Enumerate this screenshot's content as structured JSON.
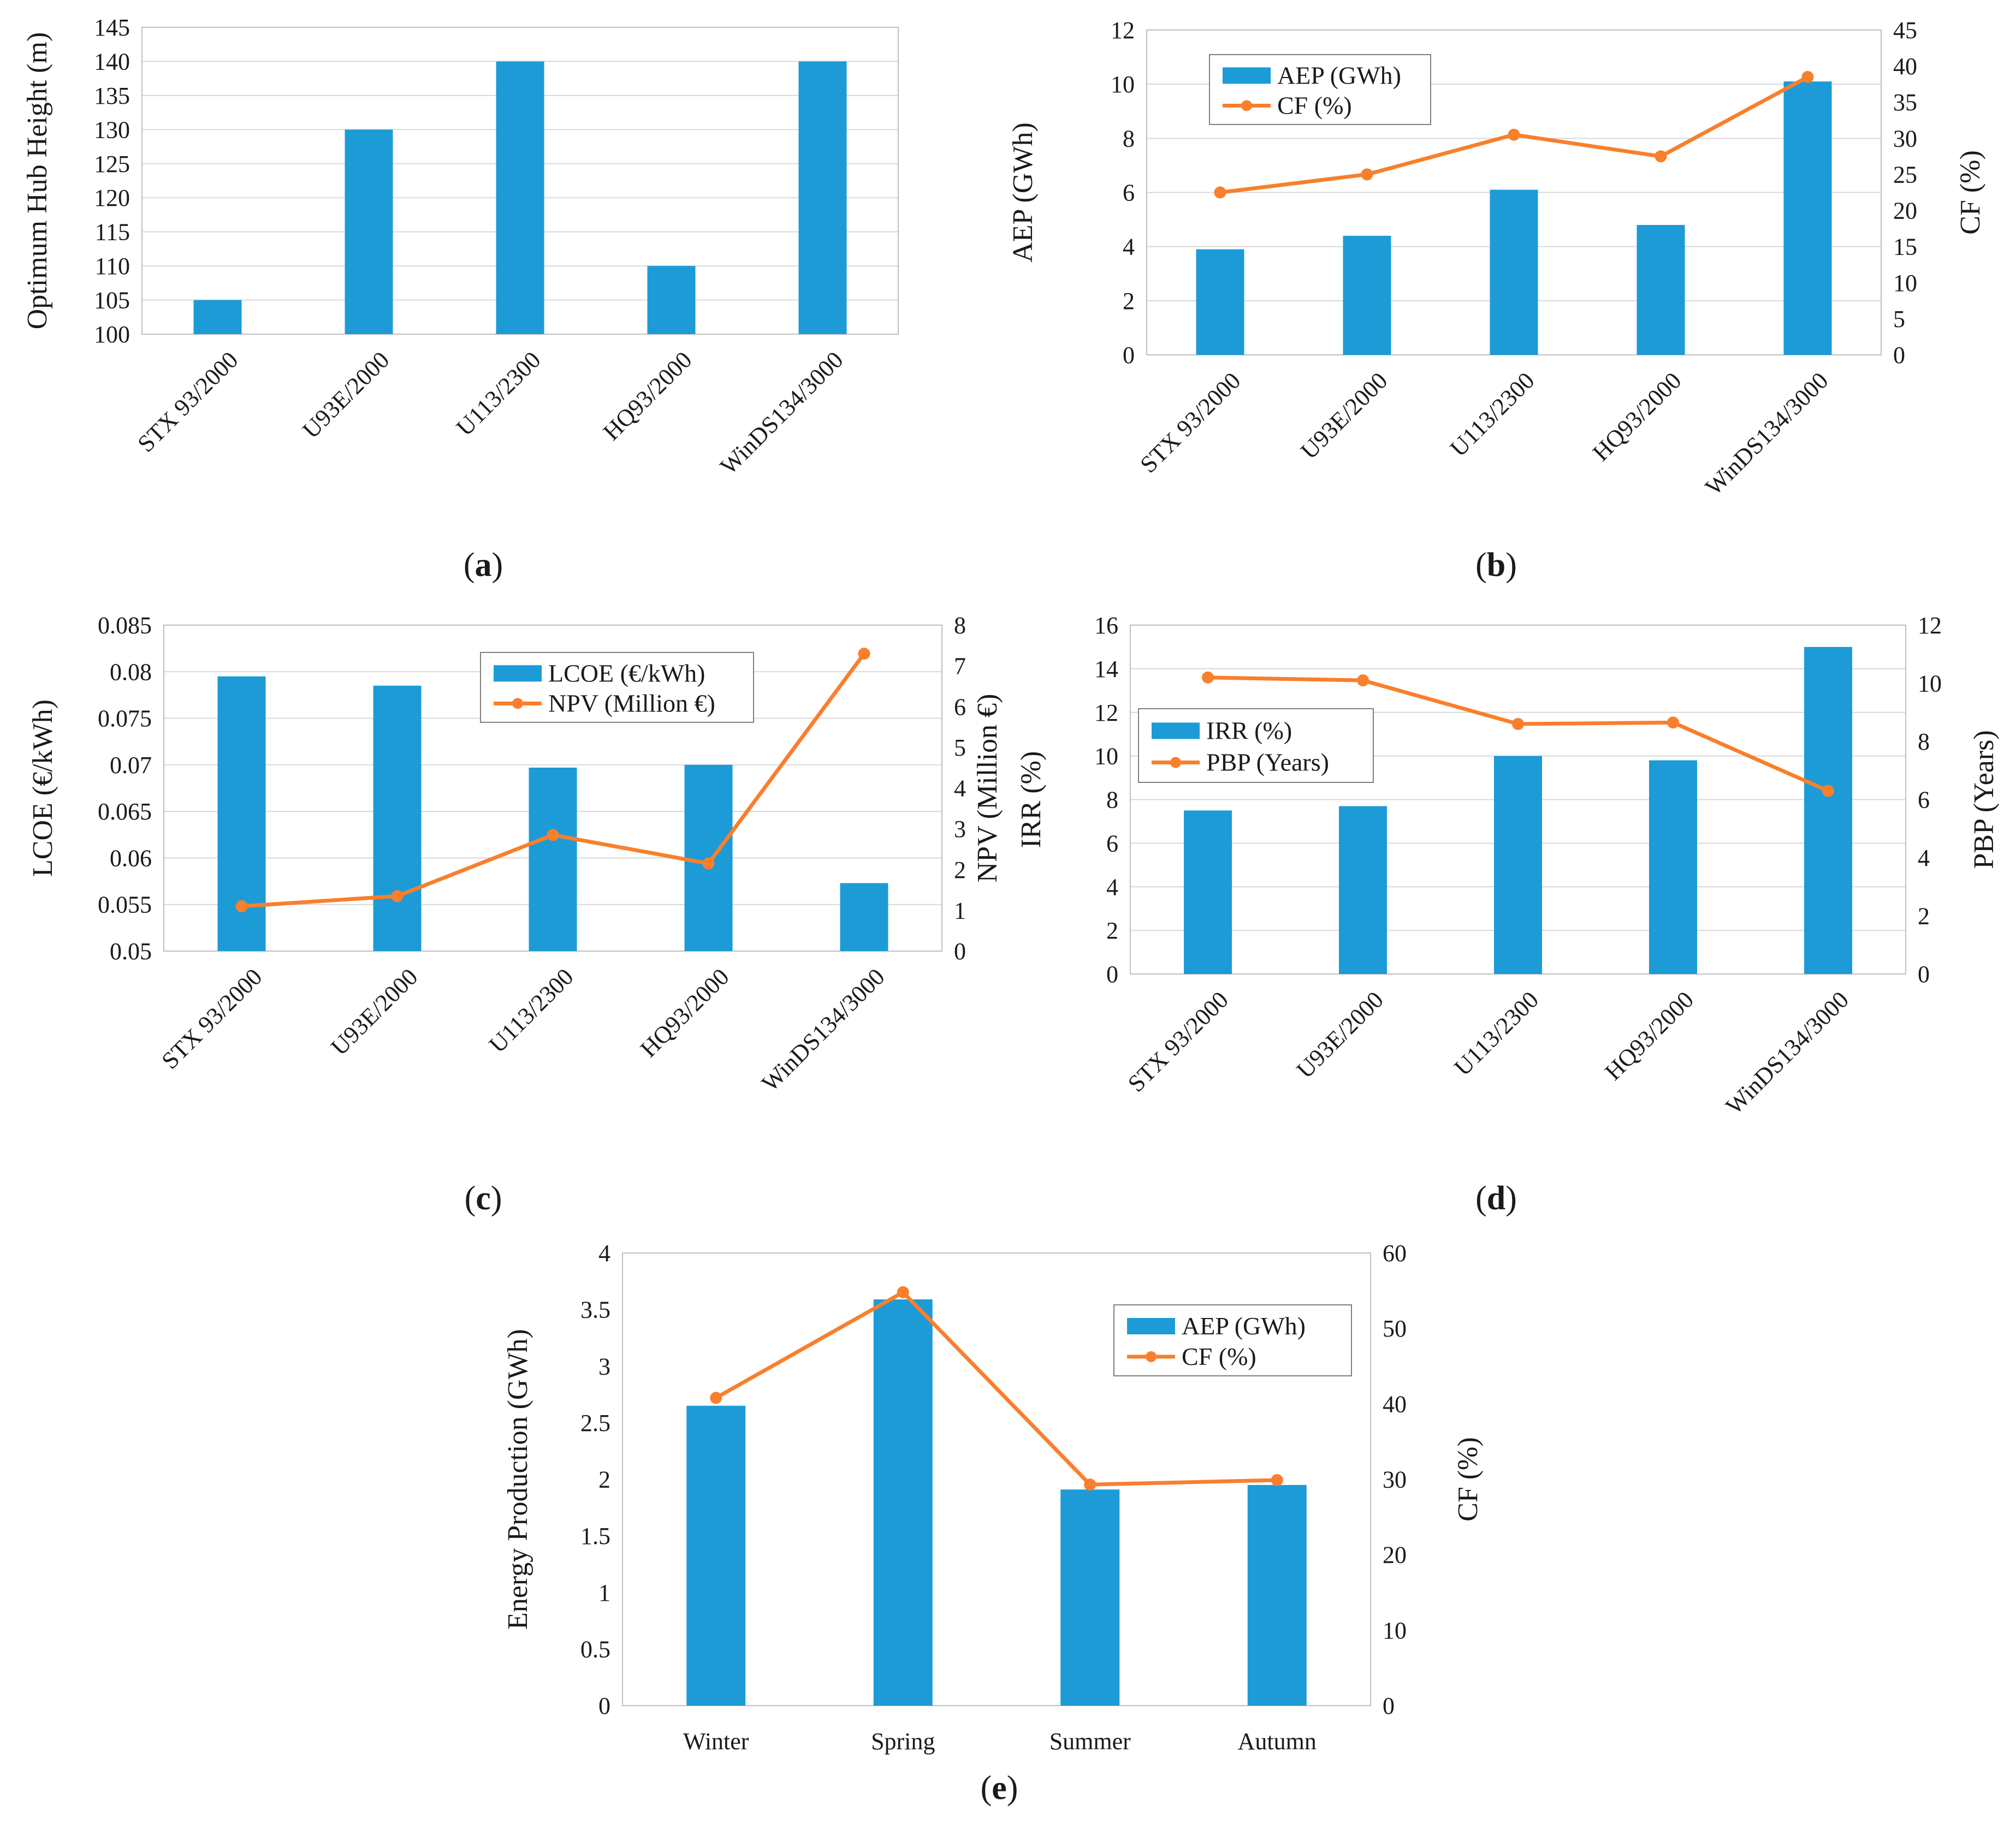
{
  "colors": {
    "bar": "#1c9bd7",
    "line": "#f97f2c",
    "grid": "#d9d9d9",
    "axis": "#bfbfbf"
  },
  "chart_data": [
    {
      "id": "a",
      "caption": {
        "open": "(",
        "letter": "a",
        "close": ")"
      },
      "type": "bar",
      "categories": [
        "STX 93/2000",
        "U93E/2000",
        "U113/2300",
        "HQ93/2000",
        "WinDS134/3000"
      ],
      "series": [
        {
          "name": "Optimum Hub Height (m)",
          "values": [
            105,
            130,
            140,
            110,
            140
          ]
        }
      ],
      "ylabel": "Optimum Hub Height (m)",
      "ylim": [
        100,
        145
      ],
      "yticks": [
        "100",
        "105",
        "110",
        "115",
        "120",
        "125",
        "130",
        "135",
        "140",
        "145"
      ],
      "grid": true
    },
    {
      "id": "b",
      "caption": {
        "open": "(",
        "letter": "b",
        "close": ")"
      },
      "type": "bar+line",
      "categories": [
        "STX 93/2000",
        "U93E/2000",
        "U113/2300",
        "HQ93/2000",
        "WinDS134/3000"
      ],
      "series": [
        {
          "name": "AEP (GWh)",
          "type": "bar",
          "axis": "left",
          "values": [
            3.9,
            4.4,
            6.1,
            4.8,
            10.1
          ]
        },
        {
          "name": "CF (%)",
          "type": "line",
          "axis": "right",
          "values": [
            22.5,
            25,
            30.5,
            27.5,
            38.5
          ]
        }
      ],
      "ylabel": "AEP (GWh)",
      "ylim": [
        0,
        12
      ],
      "yticks": [
        "0",
        "2",
        "4",
        "6",
        "8",
        "10",
        "12"
      ],
      "y2label": "CF (%)",
      "y2lim": [
        0,
        45
      ],
      "y2ticks": [
        "0",
        "5",
        "10",
        "15",
        "20",
        "25",
        "30",
        "35",
        "40",
        "45"
      ],
      "legend": "upper-left",
      "grid": true
    },
    {
      "id": "c",
      "caption": {
        "open": "(",
        "letter": "c",
        "close": ")"
      },
      "type": "bar+line",
      "categories": [
        "STX 93/2000",
        "U93E/2000",
        "U113/2300",
        "HQ93/2000",
        "WinDS134/3000"
      ],
      "series": [
        {
          "name": "LCOE (€/kWh)",
          "type": "bar",
          "axis": "left",
          "values": [
            0.0795,
            0.0785,
            0.0697,
            0.07,
            0.0573
          ]
        },
        {
          "name": "NPV (Million €)",
          "type": "line",
          "axis": "right",
          "values": [
            1.1,
            1.35,
            2.85,
            2.15,
            7.3
          ]
        }
      ],
      "ylabel": "LCOE (€/kWh)",
      "ylim": [
        0.05,
        0.085
      ],
      "yticks": [
        "0.05",
        "0.055",
        "0.06",
        "0.065",
        "0.07",
        "0.075",
        "0.08",
        "0.085"
      ],
      "y2label": "NPV (Million €)",
      "y2lim": [
        0,
        8
      ],
      "y2ticks": [
        "0",
        "1",
        "2",
        "3",
        "4",
        "5",
        "6",
        "7",
        "8"
      ],
      "legend": "upper-center",
      "grid": true
    },
    {
      "id": "d",
      "caption": {
        "open": "(",
        "letter": "d",
        "close": ")"
      },
      "type": "bar+line",
      "categories": [
        "STX 93/2000",
        "U93E/2000",
        "U113/2300",
        "HQ93/2000",
        "WinDS134/3000"
      ],
      "series": [
        {
          "name": "IRR (%)",
          "type": "bar",
          "axis": "left",
          "values": [
            7.5,
            7.7,
            10,
            9.8,
            15
          ]
        },
        {
          "name": "PBP (Years)",
          "type": "line",
          "axis": "right",
          "values": [
            10.2,
            10.1,
            8.6,
            8.65,
            6.3
          ]
        }
      ],
      "ylabel": "IRR (%)",
      "ylim": [
        0,
        16
      ],
      "yticks": [
        "0",
        "2",
        "4",
        "6",
        "8",
        "10",
        "12",
        "14",
        "16"
      ],
      "y2label": "PBP (Years)",
      "y2lim": [
        0,
        12
      ],
      "y2ticks": [
        "0",
        "2",
        "4",
        "6",
        "8",
        "10",
        "12"
      ],
      "legend": "middle-left",
      "grid": true
    },
    {
      "id": "e",
      "caption": {
        "open": "(",
        "letter": "e",
        "close": ")"
      },
      "type": "bar+line",
      "categories": [
        "Winter",
        "Spring",
        "Summer",
        "Autumn"
      ],
      "series": [
        {
          "name": "AEP (GWh)",
          "type": "bar",
          "axis": "left",
          "values": [
            2.65,
            3.59,
            1.91,
            1.95
          ]
        },
        {
          "name": "CF (%)",
          "type": "line",
          "axis": "right",
          "values": [
            40.8,
            54.8,
            29.3,
            29.9
          ]
        }
      ],
      "ylabel": "Energy Production (GWh)",
      "ylim": [
        0,
        4
      ],
      "yticks": [
        "0",
        "0.5",
        "1",
        "1.5",
        "2",
        "2.5",
        "3",
        "3.5",
        "4"
      ],
      "y2label": "CF (%)",
      "y2lim": [
        0,
        60
      ],
      "y2ticks": [
        "0",
        "10",
        "20",
        "30",
        "40",
        "50",
        "60"
      ],
      "legend": "upper-right",
      "grid": false
    }
  ]
}
